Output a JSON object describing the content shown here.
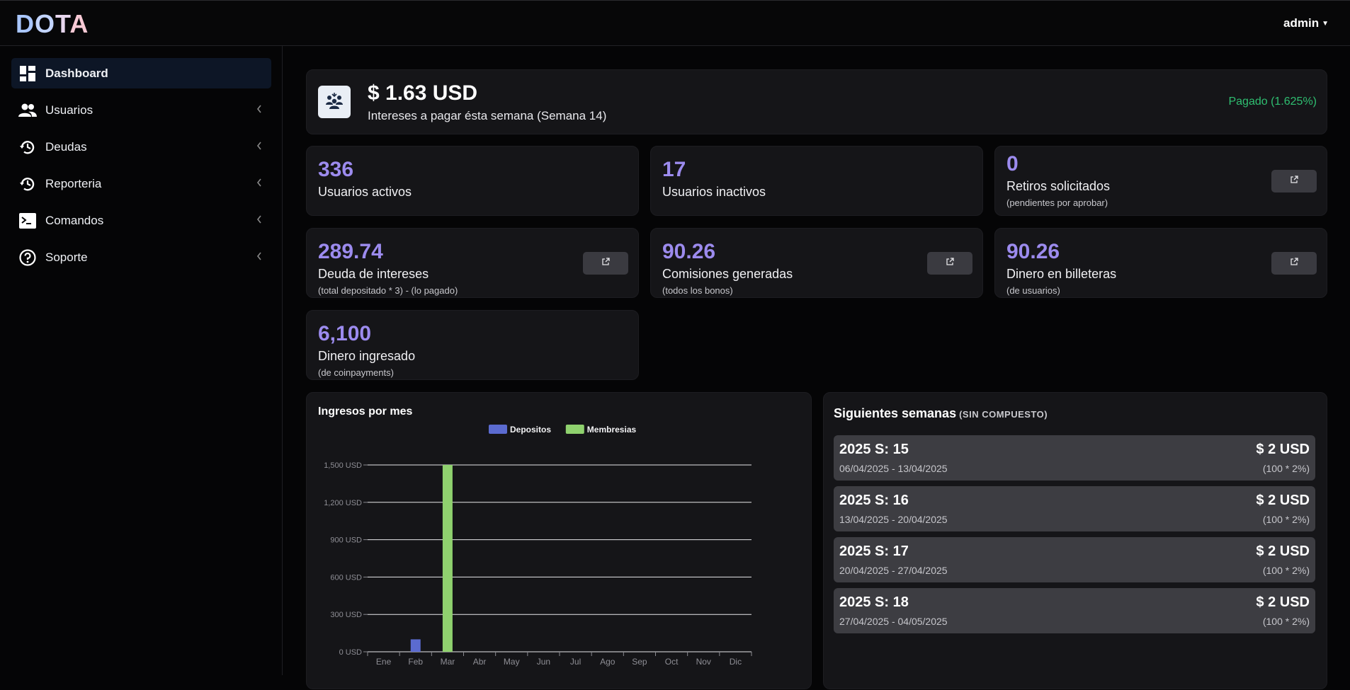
{
  "header": {
    "logo": [
      "D",
      "O",
      "T",
      "A"
    ],
    "user": "admin"
  },
  "sidebar": {
    "items": [
      {
        "label": "Dashboard",
        "icon": "dashboard-icon",
        "active": true
      },
      {
        "label": "Usuarios",
        "icon": "users-icon"
      },
      {
        "label": "Deudas",
        "icon": "history-icon"
      },
      {
        "label": "Reporteria",
        "icon": "history-icon"
      },
      {
        "label": "Comandos",
        "icon": "terminal-icon"
      },
      {
        "label": "Soporte",
        "icon": "help-icon"
      }
    ]
  },
  "banner": {
    "amount": "$ 1.63 USD",
    "subtitle": "Intereses a pagar ésta semana (Semana 14)",
    "status": "Pagado (1.625%)",
    "status_color": "#2fbf71"
  },
  "stats": [
    {
      "value": "336",
      "title": "Usuarios activos"
    },
    {
      "value": "17",
      "title": "Usuarios inactivos"
    },
    {
      "value": "0",
      "title": "Retiros solicitados",
      "note": "(pendientes por aprobar)"
    },
    {
      "value": "289.74",
      "title": "Deuda de intereses",
      "note": "(total depositado * 3) - (lo pagado)"
    },
    {
      "value": "90.26",
      "title": "Comisiones generadas",
      "note": "(todos los bonos)"
    },
    {
      "value": "90.26",
      "title": "Dinero en billeteras",
      "note": "(de usuarios)"
    },
    {
      "value": "6,100",
      "title": "Dinero ingresado",
      "note": "(de coinpayments)"
    }
  ],
  "chart_data": {
    "type": "bar",
    "title": "Ingresos por mes",
    "categories": [
      "Ene",
      "Feb",
      "Mar",
      "Abr",
      "May",
      "Jun",
      "Jul",
      "Ago",
      "Sep",
      "Oct",
      "Nov",
      "Dic"
    ],
    "series": [
      {
        "name": "Depositos",
        "color": "#5b6bd0",
        "values": [
          0,
          100,
          0,
          0,
          0,
          0,
          0,
          0,
          0,
          0,
          0,
          0
        ]
      },
      {
        "name": "Membresias",
        "color": "#8fd16e",
        "values": [
          0,
          0,
          1500,
          0,
          0,
          0,
          0,
          0,
          0,
          0,
          0,
          0
        ]
      }
    ],
    "ylim": [
      0,
      1500
    ],
    "yticks": [
      0,
      300,
      600,
      900,
      1200,
      1500
    ],
    "ytick_labels": [
      "0 USD",
      "300 USD",
      "600 USD",
      "900 USD",
      "1,200 USD",
      "1,500 USD"
    ],
    "legend_position": "top",
    "grid": true
  },
  "weeks": {
    "title": "Siguientes semanas",
    "tag": "(SIN COMPUESTO)",
    "items": [
      {
        "name": "2025 S: 15",
        "dates": "06/04/2025 - 13/04/2025",
        "amount": "$ 2 USD",
        "calc": "(100 * 2%)"
      },
      {
        "name": "2025 S: 16",
        "dates": "13/04/2025 - 20/04/2025",
        "amount": "$ 2 USD",
        "calc": "(100 * 2%)"
      },
      {
        "name": "2025 S: 17",
        "dates": "20/04/2025 - 27/04/2025",
        "amount": "$ 2 USD",
        "calc": "(100 * 2%)"
      },
      {
        "name": "2025 S: 18",
        "dates": "27/04/2025 - 04/05/2025",
        "amount": "$ 2 USD",
        "calc": "(100 * 2%)"
      }
    ]
  }
}
